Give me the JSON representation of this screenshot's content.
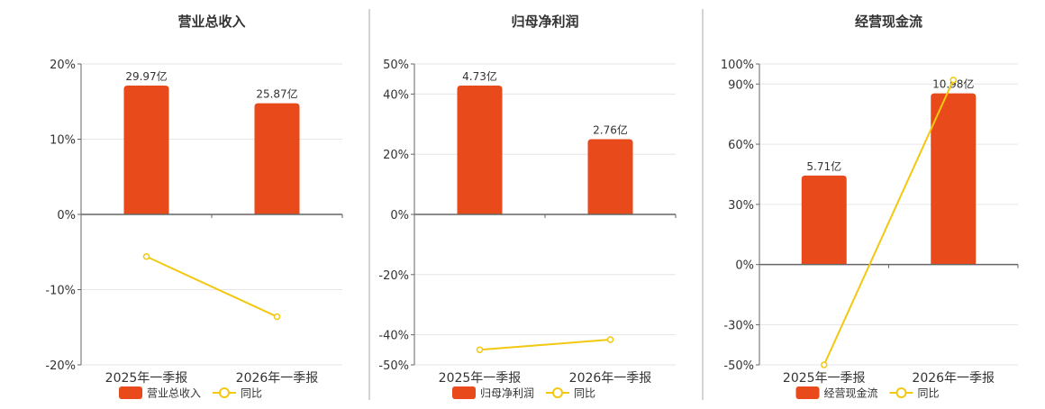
{
  "colors": {
    "bar": "#e84a1b",
    "line": "#f2c811",
    "grid": "#e6e6e6",
    "axis": "#666666",
    "divider": "#aaaaaa",
    "text": "#333333"
  },
  "chart_data": [
    {
      "type": "bar",
      "title": "营业总收入",
      "categories": [
        "2025年一季报",
        "2026年一季报"
      ],
      "bar_labels": [
        "29.97亿",
        "25.87亿"
      ],
      "bar_values": [
        29.97,
        25.87
      ],
      "yoy_values": [
        -5.6,
        -13.6
      ],
      "yaxis": {
        "min": -20,
        "max": 20,
        "ticks": [
          20,
          10,
          0,
          -10,
          -20
        ],
        "tick_labels": [
          "20%",
          "10%",
          "0%",
          "-10%",
          "-20%"
        ]
      },
      "legend": {
        "bar": "营业总收入",
        "line": "同比"
      }
    },
    {
      "type": "bar",
      "title": "归母净利润",
      "categories": [
        "2025年一季报",
        "2026年一季报"
      ],
      "bar_labels": [
        "4.73亿",
        "2.76亿"
      ],
      "bar_values": [
        4.73,
        2.76
      ],
      "yoy_values": [
        -45,
        -41.6
      ],
      "yaxis": {
        "min": -50,
        "max": 50,
        "ticks": [
          50,
          40,
          20,
          0,
          -20,
          -40,
          -50
        ],
        "tick_labels": [
          "50%",
          "40%",
          "20%",
          "0%",
          "-20%",
          "-40%",
          "-50%"
        ]
      },
      "legend": {
        "bar": "归母净利润",
        "line": "同比"
      }
    },
    {
      "type": "bar",
      "title": "经营现金流",
      "categories": [
        "2025年一季报",
        "2026年一季报"
      ],
      "bar_labels": [
        "5.71亿",
        "10.98亿"
      ],
      "bar_values": [
        5.71,
        10.98
      ],
      "yoy_values": [
        -50,
        92
      ],
      "yaxis": {
        "min": -50,
        "max": 100,
        "ticks": [
          100,
          90,
          60,
          30,
          0,
          -30,
          -50
        ],
        "tick_labels": [
          "100%",
          "90%",
          "60%",
          "30%",
          "0%",
          "-30%",
          "-50%"
        ]
      },
      "legend": {
        "bar": "经营现金流",
        "line": "同比"
      }
    }
  ]
}
